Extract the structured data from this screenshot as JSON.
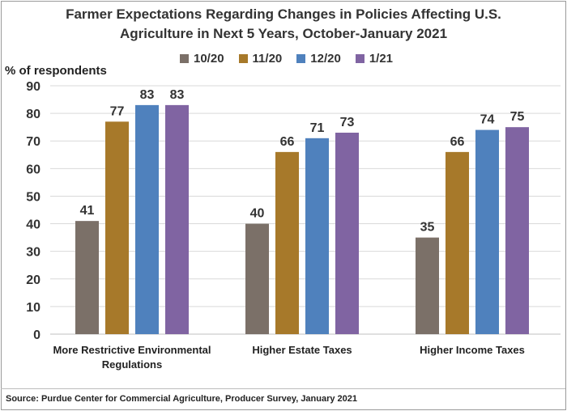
{
  "chart_data": {
    "type": "bar",
    "title_line1": "Farmer Expectations Regarding Changes in Policies Affecting U.S.",
    "title_line2": "Agriculture in Next 5 Years, October-January 2021",
    "ylabel": "% of respondents",
    "xlabel": "",
    "ylim": [
      0,
      90
    ],
    "yticks": [
      0,
      10,
      20,
      30,
      40,
      50,
      60,
      70,
      80,
      90
    ],
    "grid": true,
    "legend_position": "top-center",
    "categories": [
      {
        "line1": "More Restrictive Environmental",
        "line2": "Regulations"
      },
      {
        "line1": "Higher Estate Taxes",
        "line2": ""
      },
      {
        "line1": "Higher Income Taxes",
        "line2": ""
      }
    ],
    "series": [
      {
        "name": "10/20",
        "color": "#7b7068",
        "values": [
          41,
          40,
          35
        ]
      },
      {
        "name": "11/20",
        "color": "#a7792a",
        "values": [
          77,
          66,
          66
        ]
      },
      {
        "name": "12/20",
        "color": "#4f81bd",
        "values": [
          83,
          71,
          74
        ]
      },
      {
        "name": "1/21",
        "color": "#8064a2",
        "values": [
          83,
          73,
          75
        ]
      }
    ],
    "source": "Source: Purdue Center for Commercial Agriculture, Producer Survey, January 2021"
  }
}
